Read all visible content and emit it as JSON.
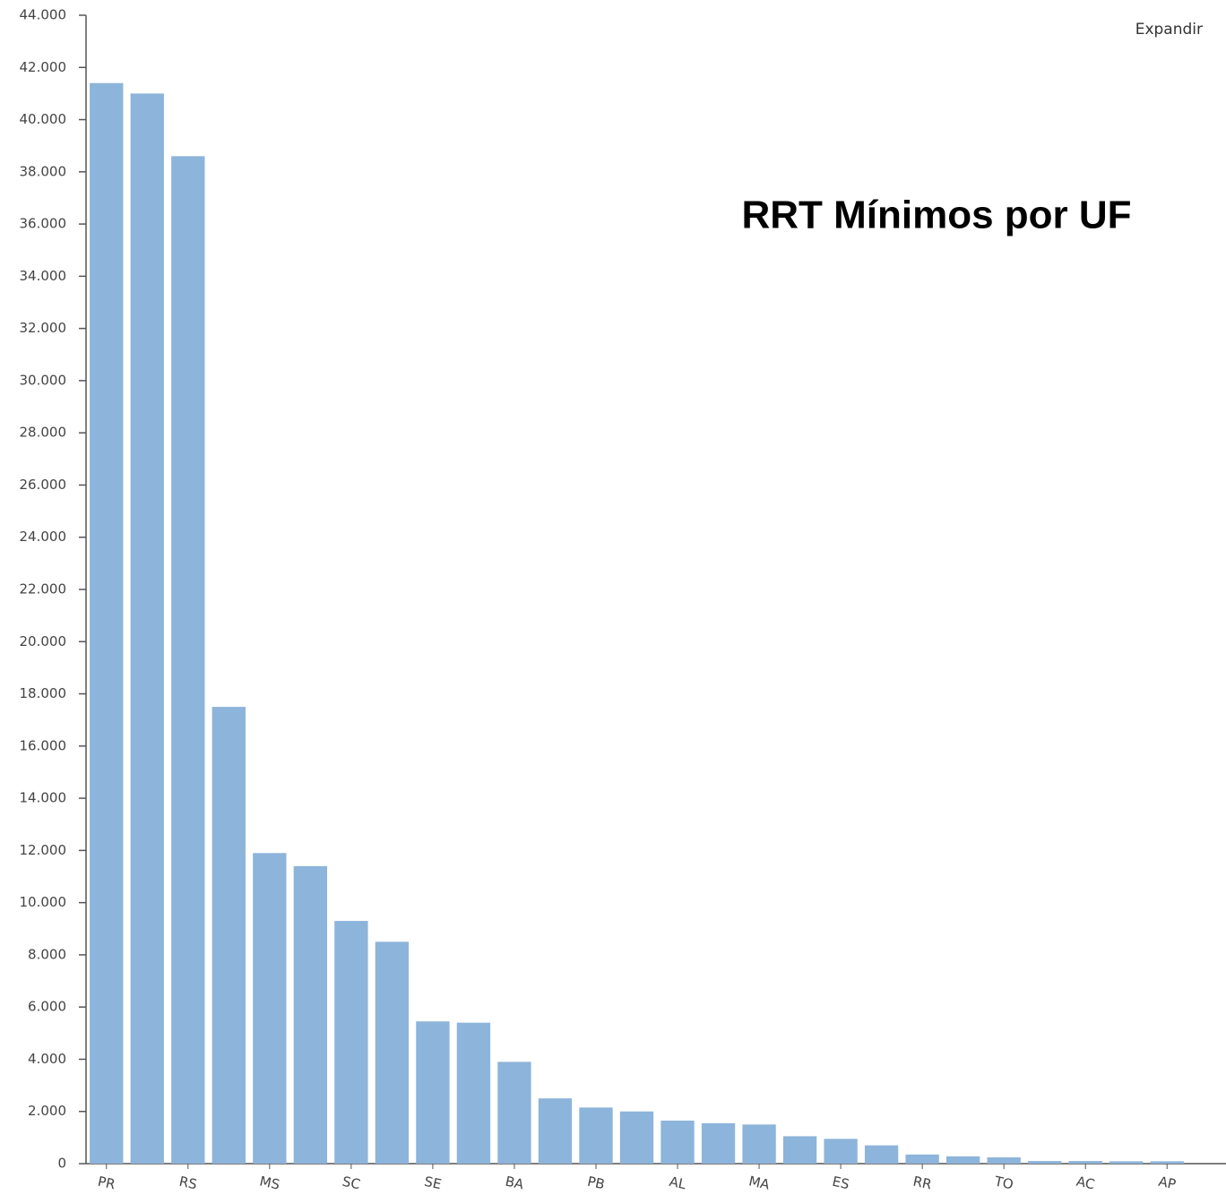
{
  "expand_label": "Expandir",
  "chart_data": {
    "type": "bar",
    "title": "RRT Mínimos por UF",
    "categories": [
      "PR",
      null,
      "RS",
      null,
      "MS",
      null,
      "SC",
      null,
      "SE",
      null,
      "BA",
      null,
      "PB",
      null,
      "AL",
      null,
      "MA",
      null,
      "ES",
      null,
      "RR",
      null,
      "TO",
      null,
      "AC",
      null,
      "AP"
    ],
    "values": [
      41400,
      41000,
      38600,
      17500,
      11900,
      11400,
      9300,
      8500,
      5450,
      5400,
      3900,
      2500,
      2150,
      2000,
      1650,
      1550,
      1500,
      1050,
      950,
      700,
      350,
      280,
      240,
      100,
      100,
      90,
      90
    ],
    "color": "#8db4da",
    "ylim": [
      0,
      44000
    ],
    "yticks": [
      0,
      {
        "value": 2000,
        "label": "2.000"
      },
      {
        "value": 4000,
        "label": "4.000"
      },
      {
        "value": 6000,
        "label": "6.000"
      },
      {
        "value": 8000,
        "label": "8.000"
      },
      {
        "value": 10000,
        "label": "10.000"
      },
      {
        "value": 12000,
        "label": "12.000"
      },
      {
        "value": 14000,
        "label": "14.000"
      },
      {
        "value": 16000,
        "label": "16.000"
      },
      {
        "value": 18000,
        "label": "18.000"
      },
      {
        "value": 20000,
        "label": "20.000"
      },
      {
        "value": 22000,
        "label": "22.000"
      },
      {
        "value": 24000,
        "label": "24.000"
      },
      {
        "value": 26000,
        "label": "26.000"
      },
      {
        "value": 28000,
        "label": "28.000"
      },
      {
        "value": 30000,
        "label": "30.000"
      },
      {
        "value": 32000,
        "label": "32.000"
      },
      {
        "value": 34000,
        "label": "34.000"
      },
      {
        "value": 36000,
        "label": "36.000"
      },
      {
        "value": 38000,
        "label": "38.000"
      },
      {
        "value": 40000,
        "label": "40.000"
      },
      {
        "value": 42000,
        "label": "42.000"
      },
      {
        "value": 44000,
        "label": "44.000"
      }
    ],
    "grid": false
  }
}
